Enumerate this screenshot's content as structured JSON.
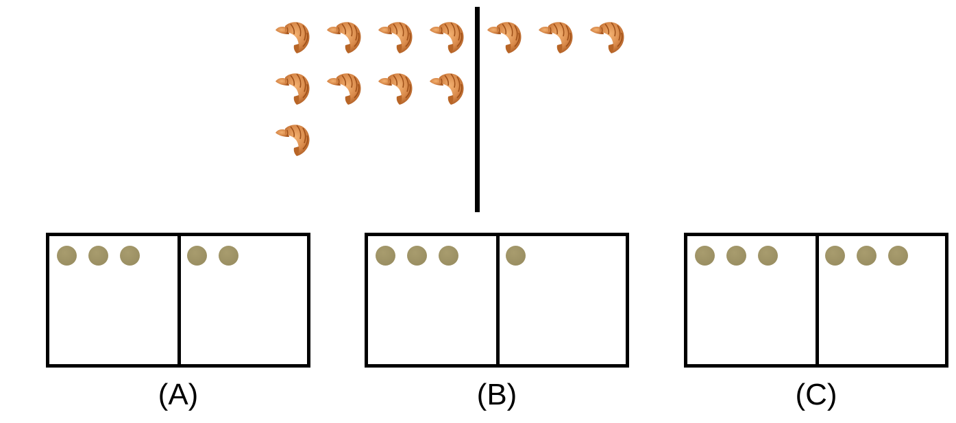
{
  "top_group": {
    "left_count": 9,
    "right_count": 3,
    "left_columns": 4,
    "item_icon": "croissant-icon"
  },
  "colors": {
    "croissant_light": "#E6A060",
    "croissant_dark": "#B05E22",
    "dot": "#958A5E",
    "line": "#000000"
  },
  "options": [
    {
      "label": "(A)",
      "left_dots": 3,
      "right_dots": 2
    },
    {
      "label": "(B)",
      "left_dots": 3,
      "right_dots": 1
    },
    {
      "label": "(C)",
      "left_dots": 3,
      "right_dots": 3
    }
  ]
}
